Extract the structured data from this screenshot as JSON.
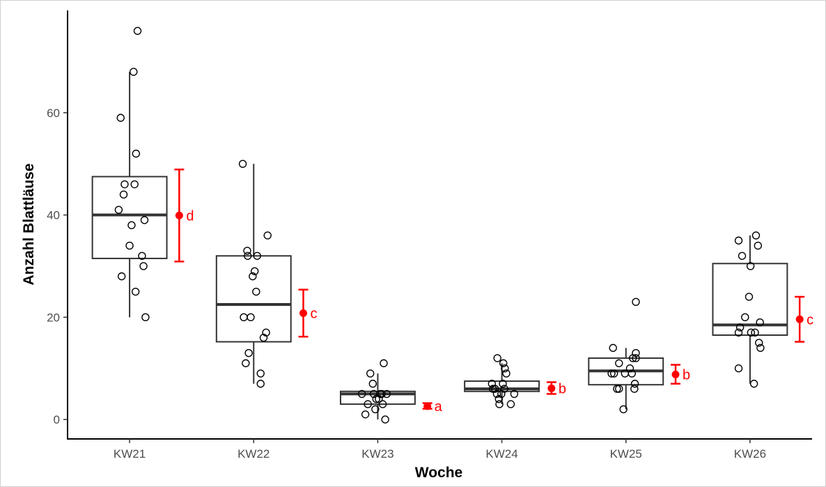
{
  "chart_data": {
    "type": "boxplot",
    "xlabel": "Woche",
    "ylabel": "Anzahl Blattläuse",
    "ylim": [
      -3.8,
      80
    ],
    "yticks": [
      0,
      20,
      40,
      60
    ],
    "grid": false,
    "colors": {
      "box": "#333333",
      "points": "#000000",
      "mean": "#ff0000"
    },
    "categories": [
      "KW21",
      "KW22",
      "KW23",
      "KW24",
      "KW25",
      "KW26"
    ],
    "groups": [
      {
        "label": "KW21",
        "box": {
          "whisker_low": 20,
          "q1": 31.5,
          "median": 40,
          "q3": 47.5,
          "whisker_high": 68
        },
        "points": [
          {
            "j": -0.22,
            "y": 41
          },
          {
            "j": -0.18,
            "y": 59
          },
          {
            "j": -0.16,
            "y": 28
          },
          {
            "j": -0.12,
            "y": 44
          },
          {
            "j": -0.1,
            "y": 46
          },
          {
            "j": 0.0,
            "y": 34
          },
          {
            "j": 0.04,
            "y": 38
          },
          {
            "j": 0.08,
            "y": 68
          },
          {
            "j": 0.1,
            "y": 46
          },
          {
            "j": 0.12,
            "y": 25
          },
          {
            "j": 0.13,
            "y": 52
          },
          {
            "j": 0.16,
            "y": 76
          },
          {
            "j": 0.25,
            "y": 32
          },
          {
            "j": 0.28,
            "y": 30
          },
          {
            "j": 0.3,
            "y": 39
          },
          {
            "j": 0.32,
            "y": 20
          }
        ],
        "mean": 39.9,
        "ci": [
          30.9,
          48.9
        ],
        "letter": "d"
      },
      {
        "label": "KW22",
        "box": {
          "whisker_low": 7,
          "q1": 15.2,
          "median": 22.5,
          "q3": 32,
          "whisker_high": 50
        },
        "points": [
          {
            "j": -0.22,
            "y": 50
          },
          {
            "j": -0.16,
            "y": 11
          },
          {
            "j": -0.13,
            "y": 33
          },
          {
            "j": -0.12,
            "y": 32
          },
          {
            "j": -0.2,
            "y": 20
          },
          {
            "j": -0.1,
            "y": 13
          },
          {
            "j": -0.06,
            "y": 20
          },
          {
            "j": -0.02,
            "y": 28
          },
          {
            "j": 0.02,
            "y": 29
          },
          {
            "j": 0.05,
            "y": 25
          },
          {
            "j": 0.07,
            "y": 32
          },
          {
            "j": 0.14,
            "y": 9
          },
          {
            "j": 0.14,
            "y": 7
          },
          {
            "j": 0.2,
            "y": 16
          },
          {
            "j": 0.25,
            "y": 17
          },
          {
            "j": 0.28,
            "y": 36
          }
        ],
        "mean": 20.8,
        "ci": [
          16.2,
          25.4
        ],
        "letter": "c"
      },
      {
        "label": "KW23",
        "box": {
          "whisker_low": 0,
          "q1": 3,
          "median": 5,
          "q3": 5.5,
          "whisker_high": 9
        },
        "points": [
          {
            "j": -0.32,
            "y": 5
          },
          {
            "j": -0.25,
            "y": 1
          },
          {
            "j": -0.2,
            "y": 3
          },
          {
            "j": -0.15,
            "y": 9
          },
          {
            "j": -0.1,
            "y": 7
          },
          {
            "j": -0.08,
            "y": 5
          },
          {
            "j": -0.05,
            "y": 2
          },
          {
            "j": -0.03,
            "y": 4
          },
          {
            "j": 0.02,
            "y": 4
          },
          {
            "j": 0.05,
            "y": 5
          },
          {
            "j": 0.08,
            "y": 5
          },
          {
            "j": 0.1,
            "y": 3
          },
          {
            "j": 0.12,
            "y": 11
          },
          {
            "j": 0.15,
            "y": 0
          },
          {
            "j": 0.18,
            "y": 5
          }
        ],
        "mean": 2.6,
        "ci": [
          2.1,
          3.2
        ],
        "letter": "a"
      },
      {
        "label": "KW24",
        "box": {
          "whisker_low": 3,
          "q1": 5.5,
          "median": 6,
          "q3": 7.5,
          "whisker_high": 11
        },
        "points": [
          {
            "j": -0.2,
            "y": 7
          },
          {
            "j": -0.18,
            "y": 6
          },
          {
            "j": -0.14,
            "y": 6
          },
          {
            "j": -0.1,
            "y": 5
          },
          {
            "j": -0.09,
            "y": 12
          },
          {
            "j": -0.06,
            "y": 4
          },
          {
            "j": -0.05,
            "y": 3
          },
          {
            "j": -0.01,
            "y": 5
          },
          {
            "j": 0.02,
            "y": 7
          },
          {
            "j": 0.03,
            "y": 11
          },
          {
            "j": 0.05,
            "y": 6
          },
          {
            "j": 0.06,
            "y": 10
          },
          {
            "j": 0.09,
            "y": 9
          },
          {
            "j": 0.18,
            "y": 3
          },
          {
            "j": 0.25,
            "y": 5
          }
        ],
        "mean": 6.1,
        "ci": [
          5.0,
          7.3
        ],
        "letter": "b"
      },
      {
        "label": "KW25",
        "box": {
          "whisker_low": 2,
          "q1": 6.8,
          "median": 9.5,
          "q3": 12,
          "whisker_high": 14
        },
        "points": [
          {
            "j": -0.29,
            "y": 9
          },
          {
            "j": -0.26,
            "y": 14
          },
          {
            "j": -0.24,
            "y": 9
          },
          {
            "j": -0.18,
            "y": 6
          },
          {
            "j": -0.14,
            "y": 6
          },
          {
            "j": -0.14,
            "y": 11
          },
          {
            "j": -0.05,
            "y": 2
          },
          {
            "j": -0.02,
            "y": 9
          },
          {
            "j": 0.08,
            "y": 10
          },
          {
            "j": 0.12,
            "y": 9
          },
          {
            "j": 0.14,
            "y": 12
          },
          {
            "j": 0.17,
            "y": 6
          },
          {
            "j": 0.18,
            "y": 7
          },
          {
            "j": 0.2,
            "y": 13
          },
          {
            "j": 0.2,
            "y": 12
          },
          {
            "j": 0.2,
            "y": 23
          }
        ],
        "mean": 8.8,
        "ci": [
          7.0,
          10.7
        ],
        "letter": "b"
      },
      {
        "label": "KW26",
        "box": {
          "whisker_low": 7,
          "q1": 16.5,
          "median": 18.5,
          "q3": 30.5,
          "whisker_high": 36
        },
        "points": [
          {
            "j": -0.23,
            "y": 35
          },
          {
            "j": -0.23,
            "y": 10
          },
          {
            "j": -0.23,
            "y": 17
          },
          {
            "j": -0.2,
            "y": 18
          },
          {
            "j": -0.16,
            "y": 32
          },
          {
            "j": -0.1,
            "y": 20
          },
          {
            "j": -0.02,
            "y": 24
          },
          {
            "j": 0.01,
            "y": 30
          },
          {
            "j": 0.02,
            "y": 17
          },
          {
            "j": 0.08,
            "y": 7
          },
          {
            "j": 0.1,
            "y": 17
          },
          {
            "j": 0.12,
            "y": 36
          },
          {
            "j": 0.16,
            "y": 34
          },
          {
            "j": 0.18,
            "y": 15
          },
          {
            "j": 0.2,
            "y": 19
          },
          {
            "j": 0.21,
            "y": 14
          }
        ],
        "mean": 19.6,
        "ci": [
          15.2,
          24.0
        ],
        "letter": "c"
      }
    ]
  }
}
